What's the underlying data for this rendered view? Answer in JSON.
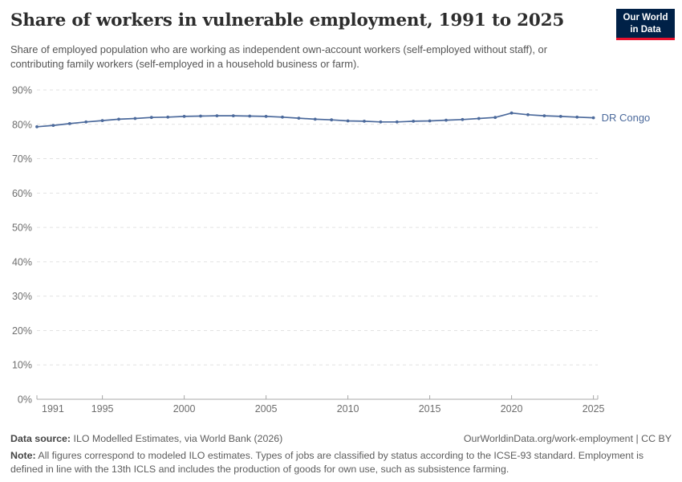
{
  "header": {
    "title": "Share of workers in vulnerable employment, 1991 to 2025",
    "subtitle": "Share of employed population who are working as independent own-account workers (self-employed without staff), or contributing family workers (self-employed in a household business or farm).",
    "logo": {
      "line1": "Our World",
      "line2": "in Data",
      "bg": "#002147",
      "accent": "#e8112d"
    }
  },
  "chart_data": {
    "type": "line",
    "title": "Share of workers in vulnerable employment, 1991 to 2025",
    "xlabel": "",
    "ylabel": "",
    "xlim": [
      1991,
      2025
    ],
    "ylim": [
      0,
      90
    ],
    "grid": "horizontal-dashed",
    "legend_position": "end-of-line-label",
    "xticks": [
      1991,
      1995,
      2000,
      2005,
      2010,
      2015,
      2020,
      2025
    ],
    "yticks": [
      0,
      10,
      20,
      30,
      40,
      50,
      60,
      70,
      80,
      90
    ],
    "ytick_labels": [
      "0%",
      "10%",
      "20%",
      "30%",
      "40%",
      "50%",
      "60%",
      "70%",
      "80%",
      "90%"
    ],
    "series": [
      {
        "name": "DR Congo",
        "color": "#4C6A9C",
        "x": [
          1991,
          1992,
          1993,
          1994,
          1995,
          1996,
          1997,
          1998,
          1999,
          2000,
          2001,
          2002,
          2003,
          2004,
          2005,
          2006,
          2007,
          2008,
          2009,
          2010,
          2011,
          2012,
          2013,
          2014,
          2015,
          2016,
          2017,
          2018,
          2019,
          2020,
          2021,
          2022,
          2023,
          2024,
          2025
        ],
        "values": [
          79.3,
          79.7,
          80.2,
          80.7,
          81.1,
          81.5,
          81.7,
          82.0,
          82.1,
          82.3,
          82.4,
          82.5,
          82.5,
          82.4,
          82.3,
          82.1,
          81.8,
          81.5,
          81.3,
          81.0,
          80.9,
          80.7,
          80.7,
          80.9,
          81.0,
          81.2,
          81.4,
          81.7,
          82.0,
          83.3,
          82.8,
          82.5,
          82.3,
          82.1,
          81.9
        ]
      }
    ],
    "colors": {
      "gridline": "#e2e2e2",
      "axis": "#a8a8a8",
      "tick_text": "#6e6e6e"
    }
  },
  "footer": {
    "datasource_label": "Data source:",
    "datasource_text": " ILO Modelled Estimates, via World Bank (2026)",
    "link": "OurWorldinData.org/work-employment | CC BY",
    "note_label": "Note:",
    "note_text": " All figures correspond to modeled ILO estimates. Types of jobs are classified by status according to the ICSE-93 standard. Employment is defined in line with the 13th ICLS and includes the production of goods for own use, such as subsistence farming."
  }
}
